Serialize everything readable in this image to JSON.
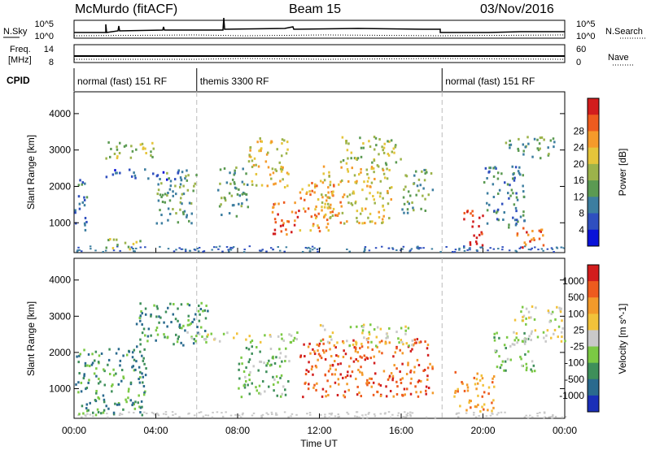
{
  "header": {
    "station": "McMurdo (fitACF)",
    "beam": "Beam 15",
    "date": "03/Nov/2016"
  },
  "status_panels": {
    "left_labels": [
      "N.Sky",
      "Freq.",
      "[MHz]",
      "CPID"
    ],
    "right_labels": [
      "N.Search",
      "Nave"
    ],
    "noise_ticks_left": [
      "10^5",
      "10^0"
    ],
    "noise_ticks_right": [
      "10^5",
      "10^0"
    ],
    "freq_ticks_left": [
      "14",
      "8"
    ],
    "nave_ticks_right": [
      "60",
      "0"
    ],
    "cpid_segments": [
      {
        "label": "normal (fast) 151 RF",
        "start_hour": 0,
        "end_hour": 6
      },
      {
        "label": "themis 3300 RF",
        "start_hour": 6,
        "end_hour": 18
      },
      {
        "label": "normal (fast) 151 RF",
        "start_hour": 18,
        "end_hour": 24
      }
    ]
  },
  "chart_data": [
    {
      "type": "heatmap",
      "quantity": "Power",
      "ylabel": "Slant Range [km]",
      "yticks": [
        1000,
        2000,
        3000,
        4000
      ],
      "ylim": [
        180,
        4600
      ],
      "xlim_hours": [
        0,
        24
      ],
      "colorbar_label": "Power [dB]",
      "colorbar_ticks": [
        4,
        8,
        12,
        16,
        20,
        24,
        28
      ],
      "colorbar_colors": [
        "#0a12d8",
        "#2f4fbf",
        "#3d7ea0",
        "#5b9a52",
        "#9cb34a",
        "#e5c53a",
        "#f59a2a",
        "#ee5b1e",
        "#d21d1d"
      ],
      "scatter_regions": [
        {
          "h0": 0.0,
          "h1": 0.6,
          "r0": 800,
          "r1": 2400,
          "level": 2
        },
        {
          "h0": 1.2,
          "h1": 3.2,
          "r0": 300,
          "r1": 600,
          "level": 4
        },
        {
          "h0": 1.5,
          "h1": 5.5,
          "r0": 2200,
          "r1": 2500,
          "level": 1
        },
        {
          "h0": 1.5,
          "h1": 4.0,
          "r0": 2800,
          "r1": 3300,
          "level": 4
        },
        {
          "h0": 4.0,
          "h1": 6.0,
          "r0": 1000,
          "r1": 2400,
          "level": 3
        },
        {
          "h0": 7.0,
          "h1": 8.5,
          "r0": 1200,
          "r1": 2600,
          "level": 3
        },
        {
          "h0": 8.5,
          "h1": 10.5,
          "r0": 2000,
          "r1": 3400,
          "level": 5
        },
        {
          "h0": 9.5,
          "h1": 11.0,
          "r0": 700,
          "r1": 1600,
          "level": 7
        },
        {
          "h0": 11.0,
          "h1": 13.0,
          "r0": 800,
          "r1": 2200,
          "level": 6
        },
        {
          "h0": 12.0,
          "h1": 15.5,
          "r0": 1000,
          "r1": 2600,
          "level": 5
        },
        {
          "h0": 13.0,
          "h1": 16.0,
          "r0": 2600,
          "r1": 3400,
          "level": 4
        },
        {
          "h0": 16.0,
          "h1": 17.5,
          "r0": 1300,
          "r1": 2500,
          "level": 3
        },
        {
          "h0": 19.0,
          "h1": 20.0,
          "r0": 400,
          "r1": 1400,
          "level": 8
        },
        {
          "h0": 20.0,
          "h1": 22.0,
          "r0": 900,
          "r1": 2600,
          "level": 2
        },
        {
          "h0": 21.5,
          "h1": 23.0,
          "r0": 300,
          "r1": 900,
          "level": 7
        },
        {
          "h0": 21.0,
          "h1": 23.5,
          "r0": 2800,
          "r1": 3400,
          "level": 3
        }
      ]
    },
    {
      "type": "heatmap",
      "quantity": "Velocity",
      "ylabel": "Slant Range [km]",
      "yticks": [
        1000,
        2000,
        3000,
        4000
      ],
      "ylim": [
        180,
        4600
      ],
      "xlim_hours": [
        0,
        24
      ],
      "xlabel": "Time UT",
      "xticks": [
        "00:00",
        "04:00",
        "08:00",
        "12:00",
        "16:00",
        "20:00",
        "00:00"
      ],
      "xtick_hours": [
        0,
        4,
        8,
        12,
        16,
        20,
        24
      ],
      "colorbar_label": "Velocity [m s^-1]",
      "colorbar_ticks": [
        "1000",
        "500",
        "100",
        "25",
        "-25",
        "-100",
        "-500",
        "-1000"
      ],
      "colorbar_colors": [
        "#1a2fb8",
        "#2a6a8e",
        "#3e8f5a",
        "#7bc944",
        "#c9c9c9",
        "#f2c23a",
        "#f39a2a",
        "#ee5b1e",
        "#d21d1d"
      ],
      "scatter_regions": [
        {
          "h0": 0.0,
          "h1": 3.5,
          "r0": 300,
          "r1": 2200,
          "level": 2
        },
        {
          "h0": 3.0,
          "h1": 6.5,
          "r0": 2200,
          "r1": 3400,
          "level": 2
        },
        {
          "h0": 5.5,
          "h1": 11.0,
          "r0": 2300,
          "r1": 2600,
          "level": 4
        },
        {
          "h0": 8.0,
          "h1": 10.5,
          "r0": 800,
          "r1": 2200,
          "level": 3
        },
        {
          "h0": 11.0,
          "h1": 17.5,
          "r0": 800,
          "r1": 2400,
          "level": 7
        },
        {
          "h0": 12.0,
          "h1": 16.5,
          "r0": 2200,
          "r1": 2800,
          "level": 4
        },
        {
          "h0": 18.5,
          "h1": 20.5,
          "r0": 400,
          "r1": 1500,
          "level": 6
        },
        {
          "h0": 20.5,
          "h1": 22.5,
          "r0": 1500,
          "r1": 2600,
          "level": 3
        },
        {
          "h0": 21.5,
          "h1": 24.0,
          "r0": 2300,
          "r1": 3300,
          "level": 4
        }
      ]
    }
  ]
}
